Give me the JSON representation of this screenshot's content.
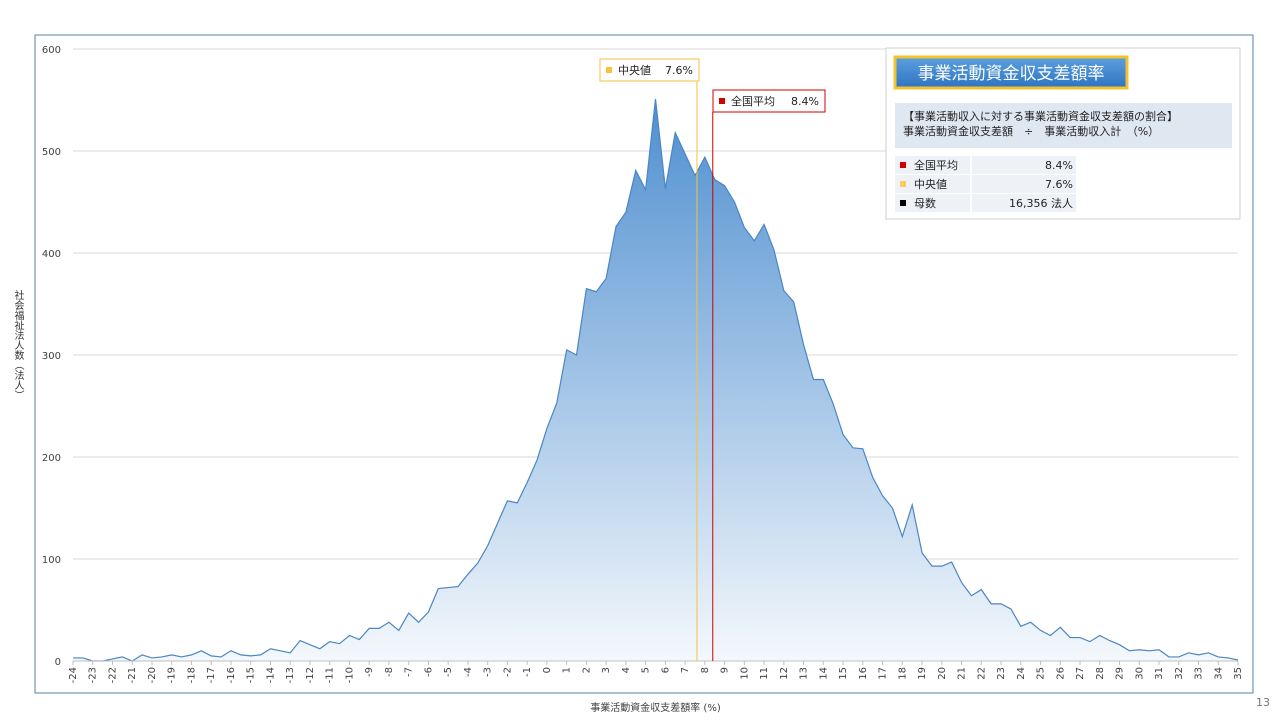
{
  "chart_data": {
    "type": "area",
    "x_label": "事業活動資金収支差額率 (%)",
    "y_label": "社会福祉法人数（法人）",
    "x": [
      -24,
      -23.5,
      -23,
      -22.5,
      -22,
      -21.5,
      -21,
      -20.5,
      -20,
      -19.5,
      -19,
      -18.5,
      -18,
      -17.5,
      -17,
      -16.5,
      -16,
      -15.5,
      -15,
      -14.5,
      -14,
      -13.5,
      -13,
      -12.5,
      -12,
      -11.5,
      -11,
      -10.5,
      -10,
      -9.5,
      -9,
      -8.5,
      -8,
      -7.5,
      -7,
      -6.5,
      -6,
      -5.5,
      -5,
      -4.5,
      -4,
      -3.5,
      -3,
      -2.5,
      -2,
      -1.5,
      -1,
      -0.5,
      0,
      0.5,
      1,
      1.5,
      2,
      2.5,
      3,
      3.5,
      4,
      4.5,
      5,
      5.5,
      6,
      6.5,
      7,
      7.5,
      8,
      8.5,
      9,
      9.5,
      10,
      10.5,
      11,
      11.5,
      12,
      12.5,
      13,
      13.5,
      14,
      14.5,
      15,
      15.5,
      16,
      16.5,
      17,
      17.5,
      18,
      18.5,
      19,
      19.5,
      20,
      20.5,
      21,
      21.5,
      22,
      22.5,
      23,
      23.5,
      24,
      24.5,
      25,
      25.5,
      26,
      26.5,
      27,
      27.5,
      28,
      28.5,
      29,
      29.5,
      30,
      30.5,
      31,
      31.5,
      32,
      32.5,
      33,
      33.5,
      34,
      34.5,
      35
    ],
    "series": [
      {
        "color": "#4a86c5",
        "values": [
          3,
          3,
          0,
          0,
          2,
          4,
          0,
          6,
          3,
          4,
          6,
          4,
          6,
          10,
          5,
          4,
          10,
          6,
          5,
          6,
          12,
          10,
          8,
          20,
          16,
          12,
          19,
          17,
          25,
          21,
          32,
          32,
          38,
          30,
          47,
          38,
          48,
          71,
          72,
          73,
          85,
          96,
          113,
          135,
          157,
          155,
          175,
          197,
          228,
          253,
          305,
          300,
          365,
          362,
          375,
          426,
          440,
          481,
          462,
          551,
          463,
          518,
          497,
          476,
          494,
          472,
          466,
          450,
          425,
          412,
          428,
          403,
          363,
          352,
          310,
          276,
          276,
          252,
          222,
          209,
          208,
          180,
          162,
          150,
          122,
          153,
          106,
          93,
          93,
          97,
          77,
          64,
          70,
          56,
          56,
          51,
          34,
          38,
          30,
          25,
          33,
          23,
          23,
          19,
          25,
          20,
          16,
          10,
          11,
          10,
          11,
          4,
          4,
          8,
          6,
          8,
          4,
          3,
          1
        ]
      }
    ],
    "xlim": [
      -24,
      35
    ],
    "ylim": [
      0,
      600
    ],
    "xticks": [
      -24,
      -23,
      -22,
      -21,
      -20,
      -19,
      -18,
      -17,
      -16,
      -15,
      -14,
      -13,
      -12,
      -11,
      -10,
      -9,
      -8,
      -7,
      -6,
      -5,
      -4,
      -3,
      -2,
      -1,
      0,
      1,
      2,
      3,
      4,
      5,
      6,
      7,
      8,
      9,
      10,
      11,
      12,
      13,
      14,
      15,
      16,
      17,
      18,
      19,
      20,
      21,
      22,
      23,
      24,
      25,
      26,
      27,
      28,
      29,
      30,
      31,
      32,
      33,
      34,
      35
    ],
    "yticks": [
      0,
      100,
      200,
      300,
      400,
      500,
      600
    ],
    "grid": true,
    "reference_lines": [
      {
        "label": "中央値",
        "value": 7.6,
        "value_label": "7.6%",
        "color": "#f5c242"
      },
      {
        "label": "全国平均",
        "value": 8.4,
        "value_label": "8.4%",
        "color": "#d00000"
      }
    ]
  },
  "info_box": {
    "title": "事業活動資金収支差額率",
    "formula": [
      "【事業活動収入に対する事業活動資金収支差額の割合】",
      "事業活動資金収支差額　÷　事業活動収入計　（%）"
    ],
    "rows": [
      {
        "label": "全国平均",
        "value": "8.4%",
        "color": "#d00000"
      },
      {
        "label": "中央値",
        "value": "7.6%",
        "color": "#f5d060"
      },
      {
        "label": "母数",
        "value": "16,356 法人",
        "color": "#000000"
      }
    ]
  },
  "page_number": "13"
}
